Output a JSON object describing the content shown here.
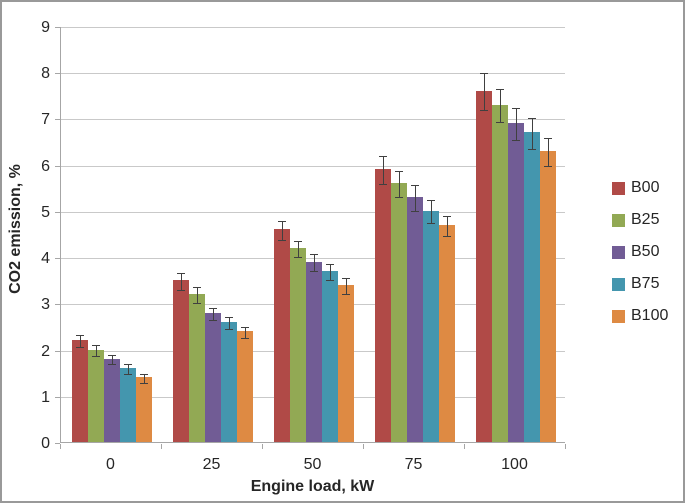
{
  "window": {
    "background": "#FFFFFF",
    "border_color": "#999999"
  },
  "colors": {
    "gridline": "#C9C9C9",
    "axis": "#A6A6A6",
    "error_bar": "#404040",
    "text": "#262626"
  },
  "chart_data": {
    "type": "bar",
    "title": "",
    "xlabel": "Engine load, kW",
    "ylabel": "CO2 emission, %",
    "categories": [
      "0",
      "25",
      "50",
      "75",
      "100"
    ],
    "ylim": [
      0,
      9
    ],
    "yticks": [
      "0",
      "1",
      "2",
      "3",
      "4",
      "5",
      "6",
      "7",
      "8",
      "9"
    ],
    "grid": true,
    "legend_position": "right",
    "error_bars": true,
    "series": [
      {
        "name": "B00",
        "color": "#B04A47",
        "values": [
          2.2,
          3.5,
          4.6,
          5.9,
          7.6
        ],
        "errors": [
          0.13,
          0.18,
          0.2,
          0.3,
          0.4
        ]
      },
      {
        "name": "B25",
        "color": "#92A954",
        "values": [
          2.0,
          3.2,
          4.2,
          5.6,
          7.3
        ],
        "errors": [
          0.12,
          0.18,
          0.17,
          0.28,
          0.35
        ]
      },
      {
        "name": "B50",
        "color": "#715C95",
        "values": [
          1.8,
          2.8,
          3.9,
          5.3,
          6.9
        ],
        "errors": [
          0.1,
          0.13,
          0.18,
          0.28,
          0.35
        ]
      },
      {
        "name": "B75",
        "color": "#4496AE",
        "values": [
          1.6,
          2.6,
          3.7,
          5.0,
          6.7
        ],
        "errors": [
          0.1,
          0.13,
          0.17,
          0.25,
          0.33
        ]
      },
      {
        "name": "B100",
        "color": "#DE8A43",
        "values": [
          1.4,
          2.4,
          3.4,
          4.7,
          6.3
        ],
        "errors": [
          0.1,
          0.12,
          0.17,
          0.22,
          0.3
        ]
      }
    ]
  }
}
